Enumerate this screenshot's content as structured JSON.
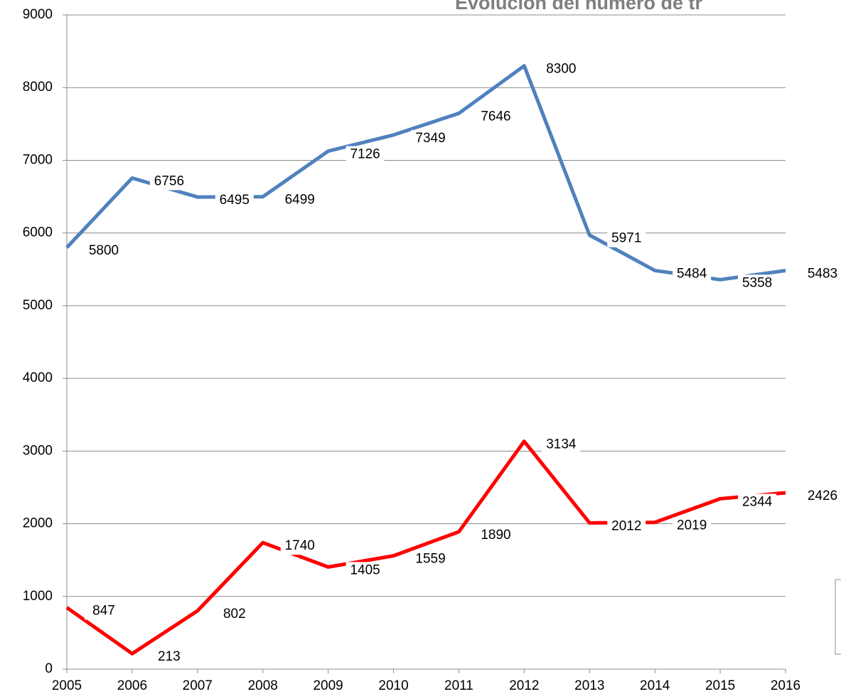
{
  "chart_data": {
    "type": "line",
    "title": "Evolución del número de tr",
    "x": [
      2005,
      2006,
      2007,
      2008,
      2009,
      2010,
      2011,
      2012,
      2013,
      2014,
      2015,
      2016
    ],
    "xlim": [
      2005,
      2016
    ],
    "xticks": [
      2005,
      2006,
      2007,
      2008,
      2009,
      2010,
      2011,
      2012,
      2013,
      2014,
      2015,
      2016
    ],
    "ylim": [
      0,
      9000
    ],
    "yticks": [
      0,
      1000,
      2000,
      3000,
      4000,
      5000,
      6000,
      7000,
      8000,
      9000
    ],
    "grid": true,
    "series": [
      {
        "color": "#4f81bd",
        "values": [
          5800,
          6756,
          6495,
          6499,
          7126,
          7349,
          7646,
          8300,
          5971,
          5484,
          5358,
          5483
        ]
      },
      {
        "color": "#ff0000",
        "values": [
          847,
          213,
          802,
          1740,
          1405,
          1559,
          1890,
          3134,
          2012,
          2019,
          2344,
          2426
        ]
      }
    ]
  }
}
